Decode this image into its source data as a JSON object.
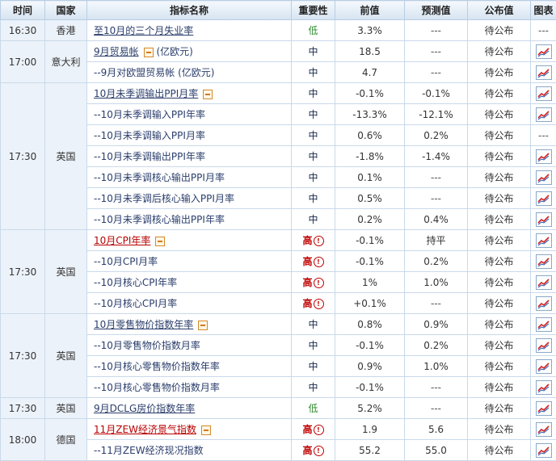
{
  "headers": [
    "时间",
    "国家",
    "指标名称",
    "重要性",
    "前值",
    "预测值",
    "公布值",
    "图表"
  ],
  "unit_eur": "(亿欧元)",
  "dash": "---",
  "groups": [
    {
      "time": "16:30",
      "country": "香港",
      "rows": [
        {
          "name": "至10月的三个月失业率",
          "link": true,
          "red": false,
          "toggle": false,
          "imp": "低",
          "prev": "3.3%",
          "fcst": "---",
          "pub": "待公布",
          "chart": false
        }
      ]
    },
    {
      "time": "17:00",
      "country": "意大利",
      "rows": [
        {
          "name": "9月贸易帐",
          "link": true,
          "red": false,
          "toggle": true,
          "unit": "(亿欧元)",
          "imp": "中",
          "prev": "18.5",
          "fcst": "---",
          "pub": "待公布",
          "chart": true
        },
        {
          "name": "--9月对欧盟贸易帐 (亿欧元)",
          "link": false,
          "imp": "中",
          "prev": "4.7",
          "fcst": "---",
          "pub": "待公布",
          "chart": true
        }
      ]
    },
    {
      "time": "17:30",
      "country": "英国",
      "rows": [
        {
          "name": "10月未季调输出PPI月率",
          "link": true,
          "toggle": true,
          "imp": "中",
          "prev": "-0.1%",
          "fcst": "-0.1%",
          "pub": "待公布",
          "chart": true
        },
        {
          "name": "--10月未季调输入PPI年率",
          "imp": "中",
          "prev": "-13.3%",
          "fcst": "-12.1%",
          "pub": "待公布",
          "chart": true
        },
        {
          "name": "--10月未季调输入PPI月率",
          "imp": "中",
          "prev": "0.6%",
          "fcst": "0.2%",
          "pub": "待公布",
          "chart": false
        },
        {
          "name": "--10月未季调输出PPI年率",
          "imp": "中",
          "prev": "-1.8%",
          "fcst": "-1.4%",
          "pub": "待公布",
          "chart": true
        },
        {
          "name": "--10月未季调核心输出PPI月率",
          "imp": "中",
          "prev": "0.1%",
          "fcst": "---",
          "pub": "待公布",
          "chart": true
        },
        {
          "name": "--10月未季调后核心输入PPI月率",
          "imp": "中",
          "prev": "0.5%",
          "fcst": "---",
          "pub": "待公布",
          "chart": true
        },
        {
          "name": "--10月未季调核心输出PPI年率",
          "imp": "中",
          "prev": "0.2%",
          "fcst": "0.4%",
          "pub": "待公布",
          "chart": true
        }
      ]
    },
    {
      "time": "17:30",
      "country": "英国",
      "rows": [
        {
          "name": "10月CPI年率",
          "link": true,
          "red": true,
          "toggle": true,
          "imp": "高",
          "high": true,
          "prev": "-0.1%",
          "fcst": "持平",
          "pub": "待公布",
          "chart": true
        },
        {
          "name": "--10月CPI月率",
          "imp": "高",
          "high": true,
          "prev": "-0.1%",
          "fcst": "0.2%",
          "pub": "待公布",
          "chart": true
        },
        {
          "name": "--10月核心CPI年率",
          "imp": "高",
          "high": true,
          "prev": "1%",
          "fcst": "1.0%",
          "pub": "待公布",
          "chart": true
        },
        {
          "name": "--10月核心CPI月率",
          "imp": "高",
          "high": true,
          "prev": "+0.1%",
          "fcst": "---",
          "pub": "待公布",
          "chart": true
        }
      ]
    },
    {
      "time": "17:30",
      "country": "英国",
      "rows": [
        {
          "name": "10月零售物价指数年率",
          "link": true,
          "toggle": true,
          "imp": "中",
          "prev": "0.8%",
          "fcst": "0.9%",
          "pub": "待公布",
          "chart": true
        },
        {
          "name": "--10月零售物价指数月率",
          "imp": "中",
          "prev": "-0.1%",
          "fcst": "0.2%",
          "pub": "待公布",
          "chart": true
        },
        {
          "name": "--10月核心零售物价指数年率",
          "imp": "中",
          "prev": "0.9%",
          "fcst": "1.0%",
          "pub": "待公布",
          "chart": true
        },
        {
          "name": "--10月核心零售物价指数月率",
          "imp": "中",
          "prev": "-0.1%",
          "fcst": "---",
          "pub": "待公布",
          "chart": true
        }
      ]
    },
    {
      "time": "17:30",
      "country": "英国",
      "rows": [
        {
          "name": "9月DCLG房价指数年率",
          "link": true,
          "imp": "低",
          "prev": "5.2%",
          "fcst": "---",
          "pub": "待公布",
          "chart": true
        }
      ]
    },
    {
      "time": "18:00",
      "country": "德国",
      "rows": [
        {
          "name": "11月ZEW经济景气指数",
          "link": true,
          "red": true,
          "toggle": true,
          "imp": "高",
          "high": true,
          "prev": "1.9",
          "fcst": "5.6",
          "pub": "待公布",
          "chart": true
        },
        {
          "name": "--11月ZEW经济现况指数",
          "imp": "高",
          "high": true,
          "prev": "55.2",
          "fcst": "55.0",
          "pub": "待公布",
          "chart": true
        }
      ]
    }
  ]
}
